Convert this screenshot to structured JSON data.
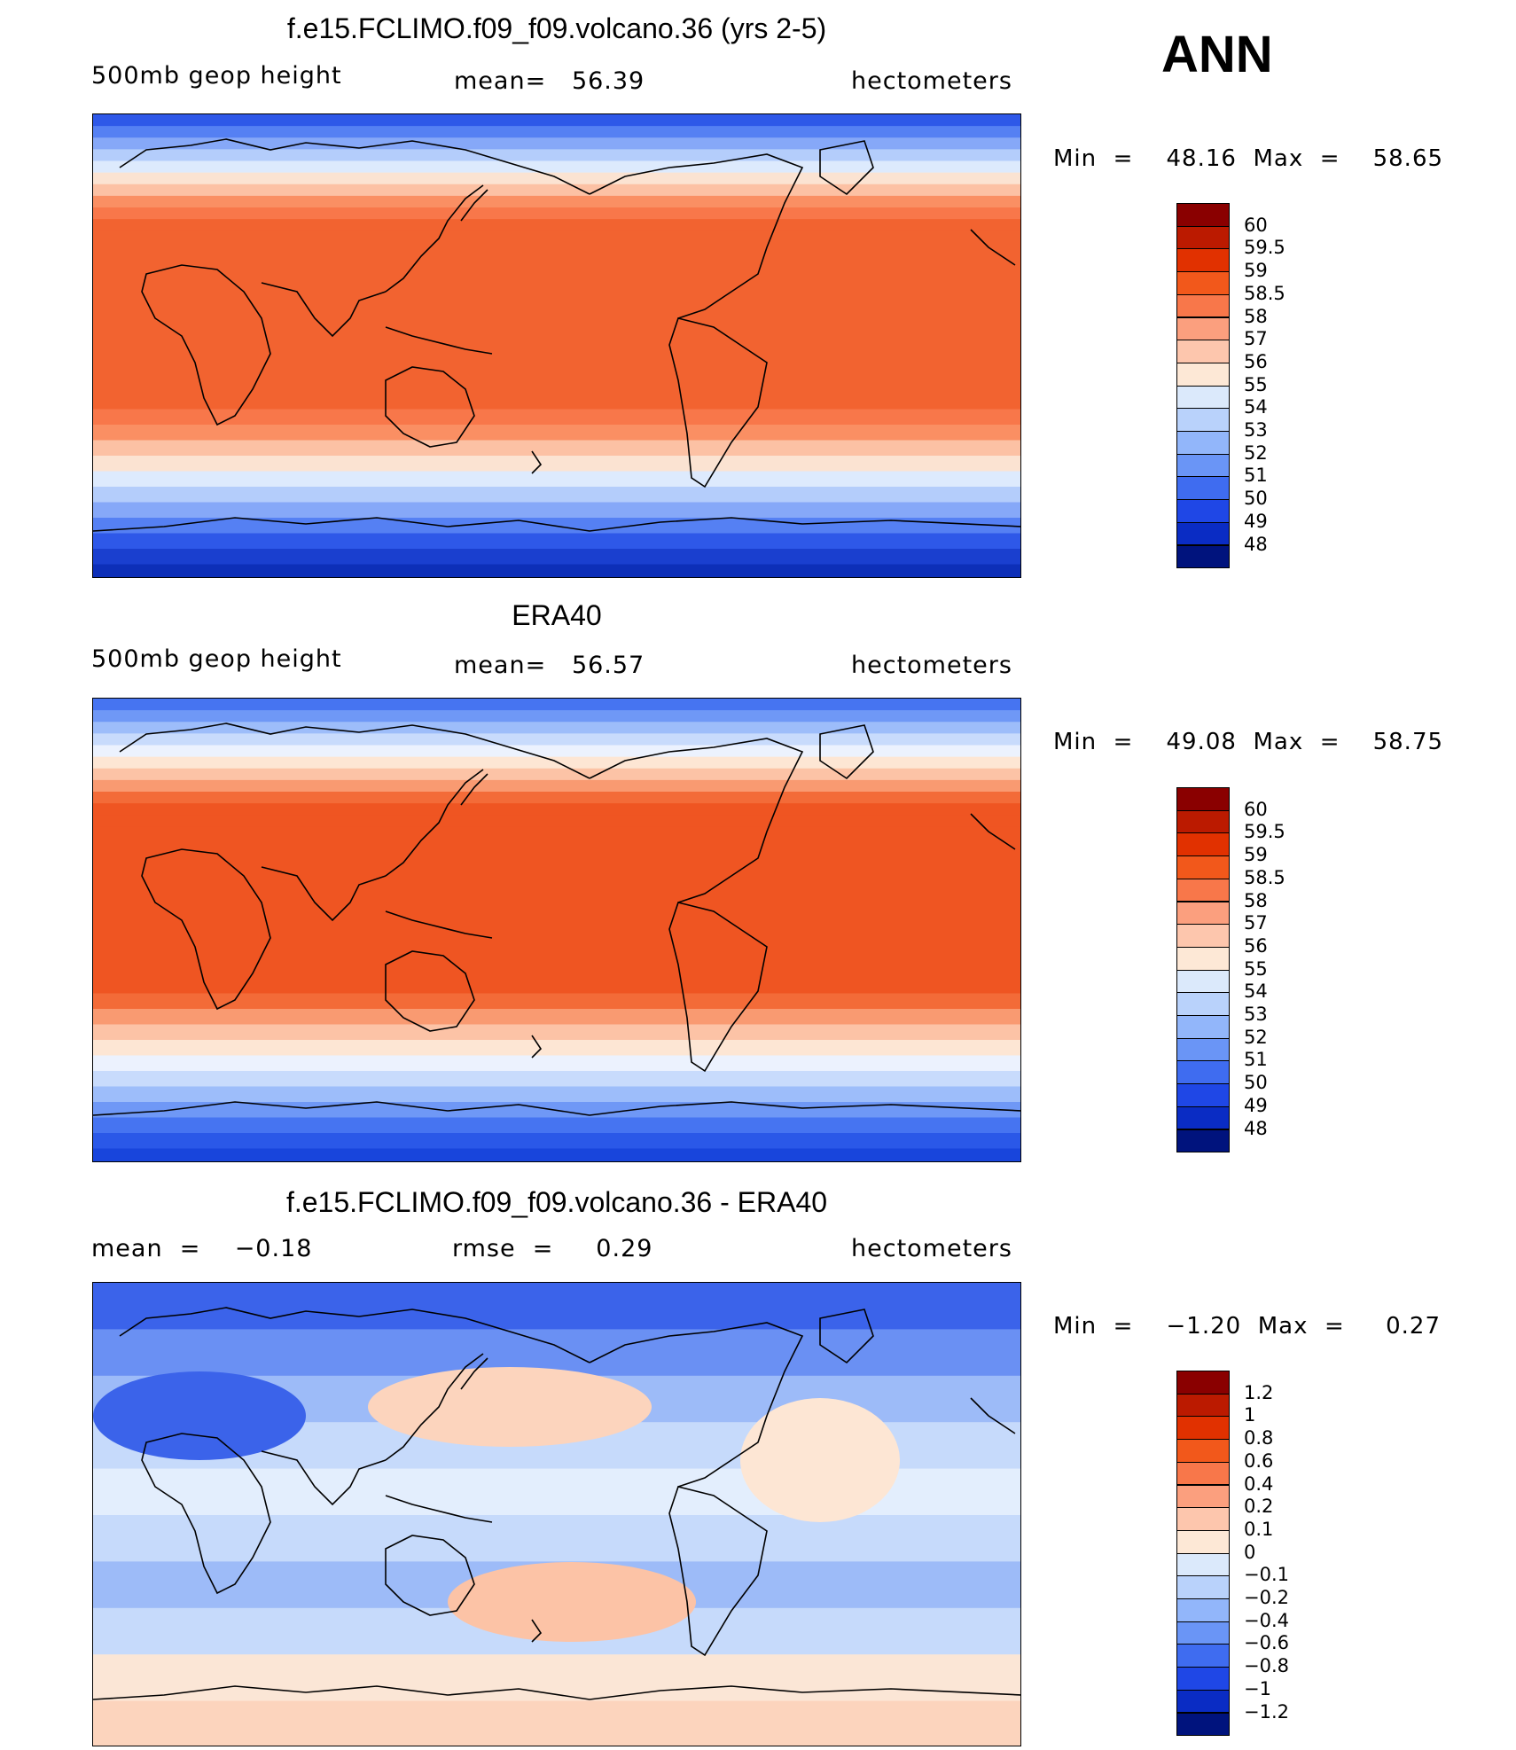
{
  "season": "ANN",
  "panels": [
    {
      "title": "f.e15.FCLIMO.f09_f09.volcano.36 (yrs 2-5)",
      "left_label": "500mb geop height",
      "center_label": "mean=   56.39",
      "right_label": "hectometers",
      "minmax": "Min  =    48.16  Max  =    58.65",
      "field_min": 48.16,
      "field_max": 58.65,
      "colorbar_labels": [
        "60",
        "59.5",
        "59",
        "58.5",
        "58",
        "57",
        "56",
        "55",
        "54",
        "53",
        "52",
        "51",
        "50",
        "49",
        "48"
      ],
      "colorbar_colors": [
        "#8a0000",
        "#bb1a00",
        "#e13100",
        "#f2581b",
        "#f8774a",
        "#fb9f7e",
        "#fdc6ad",
        "#fde8d6",
        "#dbe9fb",
        "#b9d2fb",
        "#92b6fa",
        "#6a95f6",
        "#3f6cf0",
        "#1f47e6",
        "#0a2cc4",
        "#00137d"
      ],
      "band_colors": [
        "#0d2fb8",
        "#1a3fcf",
        "#2e58e8",
        "#5580f3",
        "#86a8f8",
        "#b4cdfb",
        "#ddeafd",
        "#fbe3d2",
        "#fcc1a4",
        "#fa8f63",
        "#f8774a",
        "#f26330"
      ]
    },
    {
      "title": "ERA40",
      "left_label": "500mb geop height",
      "center_label": "mean=   56.57",
      "right_label": "hectometers",
      "minmax": "Min  =    49.08  Max  =    58.75",
      "field_min": 49.08,
      "field_max": 58.75,
      "colorbar_labels": [
        "60",
        "59.5",
        "59",
        "58.5",
        "58",
        "57",
        "56",
        "55",
        "54",
        "53",
        "52",
        "51",
        "50",
        "49",
        "48"
      ],
      "colorbar_colors": [
        "#8a0000",
        "#bb1a00",
        "#e13100",
        "#f2581b",
        "#f8774a",
        "#fb9f7e",
        "#fdc6ad",
        "#fde8d6",
        "#dbe9fb",
        "#b9d2fb",
        "#92b6fa",
        "#6a95f6",
        "#3f6cf0",
        "#1f47e6",
        "#0a2cc4",
        "#00137d"
      ],
      "band_colors": [
        "#1845dc",
        "#2a58e8",
        "#4674f1",
        "#6f98f6",
        "#9dbdfa",
        "#c8dbfc",
        "#ecf2fe",
        "#fde6d4",
        "#fcc3a6",
        "#f99a71",
        "#f36b38",
        "#ef5522"
      ]
    },
    {
      "title": "f.e15.FCLIMO.f09_f09.volcano.36 - ERA40",
      "left_label": "mean  =    −0.18",
      "center_label": "rmse  =     0.29",
      "right_label": "hectometers",
      "minmax": "Min  =    −1.20  Max  =     0.27",
      "field_min": -1.2,
      "field_max": 0.27,
      "colorbar_labels": [
        "1.2",
        "1",
        "0.8",
        "0.6",
        "0.4",
        "0.2",
        "0.1",
        "0",
        "−0.1",
        "−0.2",
        "−0.4",
        "−0.6",
        "−0.8",
        "−1",
        "−1.2"
      ],
      "colorbar_colors": [
        "#8a0000",
        "#bb1a00",
        "#e13100",
        "#f2581b",
        "#f8774a",
        "#fb9f7e",
        "#fdc6ad",
        "#fde8d6",
        "#dbe9fb",
        "#b9d2fb",
        "#92b6fa",
        "#6a95f6",
        "#3f6cf0",
        "#1f47e6",
        "#0a2cc4",
        "#00137d"
      ],
      "band_colors": [
        "#3b63ea",
        "#6a90f3",
        "#9dbbf8",
        "#c6dafb",
        "#e3eefd",
        "#c6dafb",
        "#9dbbf8",
        "#c6dafb",
        "#fbe6d6",
        "#fcd4bd"
      ]
    }
  ]
}
